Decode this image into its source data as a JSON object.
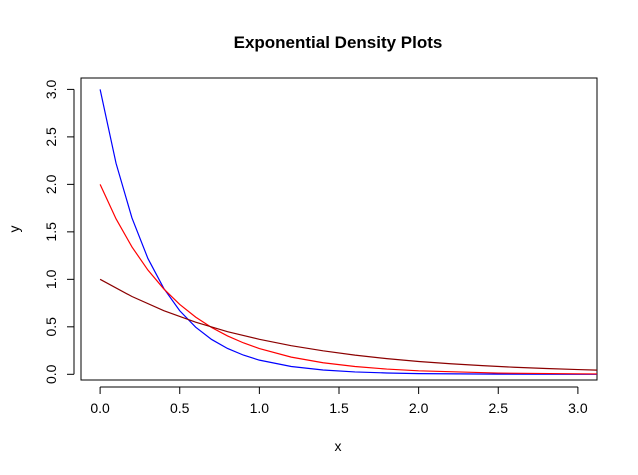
{
  "chart_data": {
    "type": "line",
    "title": "Exponential Density Plots",
    "xlabel": "x",
    "ylabel": "y",
    "xlim": [
      -0.12,
      3.12
    ],
    "ylim": [
      -0.06,
      3.12
    ],
    "x_ticks": [
      0.0,
      0.5,
      1.0,
      1.5,
      2.0,
      2.5,
      3.0
    ],
    "x_tick_labels": [
      "0.0",
      "0.5",
      "1.0",
      "1.5",
      "2.0",
      "2.5",
      "3.0"
    ],
    "y_ticks": [
      0.0,
      0.5,
      1.0,
      1.5,
      2.0,
      2.5,
      3.0
    ],
    "y_tick_labels": [
      "0.0",
      "0.5",
      "1.0",
      "1.5",
      "2.0",
      "2.5",
      "3.0"
    ],
    "grid": false,
    "series": [
      {
        "color": "#0000ff",
        "x": [
          0,
          0.1,
          0.2,
          0.3,
          0.4,
          0.5,
          0.6,
          0.7,
          0.8,
          0.9,
          1.0,
          1.2,
          1.4,
          1.6,
          1.8,
          2.0,
          2.5,
          3.0,
          3.12
        ],
        "y": [
          3.0,
          2.222,
          1.646,
          1.22,
          0.904,
          0.669,
          0.496,
          0.367,
          0.272,
          0.202,
          0.149,
          0.082,
          0.045,
          0.025,
          0.014,
          0.007,
          0.002,
          0.0004,
          0.0003
        ]
      },
      {
        "color": "#ff0000",
        "x": [
          0,
          0.1,
          0.2,
          0.3,
          0.4,
          0.5,
          0.6,
          0.7,
          0.8,
          0.9,
          1.0,
          1.2,
          1.4,
          1.6,
          1.8,
          2.0,
          2.5,
          3.0,
          3.12
        ],
        "y": [
          2.0,
          1.637,
          1.341,
          1.098,
          0.899,
          0.736,
          0.602,
          0.493,
          0.404,
          0.331,
          0.271,
          0.181,
          0.122,
          0.082,
          0.055,
          0.037,
          0.013,
          0.005,
          0.004
        ]
      },
      {
        "color": "#8b0000",
        "x": [
          0,
          0.2,
          0.4,
          0.6,
          0.8,
          1.0,
          1.2,
          1.4,
          1.6,
          1.8,
          2.0,
          2.2,
          2.4,
          2.6,
          2.8,
          3.0,
          3.12
        ],
        "y": [
          1.0,
          0.819,
          0.67,
          0.549,
          0.449,
          0.368,
          0.301,
          0.247,
          0.202,
          0.165,
          0.135,
          0.111,
          0.091,
          0.074,
          0.061,
          0.05,
          0.044
        ]
      }
    ]
  }
}
